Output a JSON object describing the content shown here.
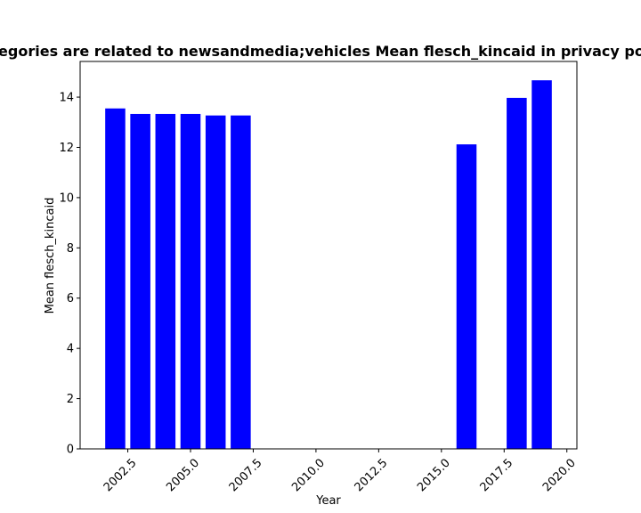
{
  "chart_data": {
    "type": "bar",
    "title": "Categories are related to newsandmedia;vehicles Mean flesch_kincaid in privacy policies",
    "xlabel": "Year",
    "ylabel": "Mean flesch_kincaid",
    "bar_color": "#0000ff",
    "bar_width": 0.8,
    "x": [
      2002,
      2003,
      2004,
      2005,
      2006,
      2007,
      2016,
      2018,
      2019
    ],
    "values": [
      13.55,
      13.33,
      13.33,
      13.33,
      13.27,
      13.27,
      12.12,
      13.97,
      14.67
    ],
    "xlim": [
      2000.6,
      2020.4
    ],
    "ylim": [
      0,
      15.42
    ],
    "xticks": [
      2002.5,
      2005.0,
      2007.5,
      2010.0,
      2012.5,
      2015.0,
      2017.5,
      2020.0
    ],
    "xtick_labels": [
      "2002.5",
      "2005.0",
      "2007.5",
      "2010.0",
      "2012.5",
      "2015.0",
      "2017.5",
      "2020.0"
    ],
    "yticks": [
      0,
      2,
      4,
      6,
      8,
      10,
      12,
      14
    ],
    "ytick_labels": [
      "0",
      "2",
      "4",
      "6",
      "8",
      "10",
      "12",
      "14"
    ],
    "xtick_rotation": 45,
    "grid": false,
    "legend": "none"
  }
}
